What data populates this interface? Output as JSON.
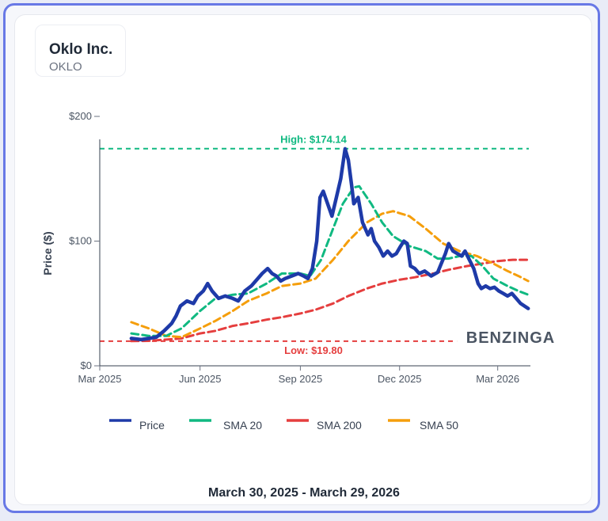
{
  "header": {
    "company": "Oklo Inc.",
    "ticker": "OKLO"
  },
  "footer": {
    "date_range": "March 30, 2025 - March 29, 2026"
  },
  "watermark": {
    "text": "BENZINGA"
  },
  "colors": {
    "price": "#1e3aa8",
    "sma20": "#10b981",
    "sma200": "#e53e3e",
    "sma50": "#f59e0b",
    "high_line": "#10b981",
    "low_line": "#e53e3e"
  },
  "chart_data": {
    "type": "line",
    "ylabel": "Price ($)",
    "ylim": [
      0,
      200
    ],
    "yticks": [
      {
        "value": 0,
        "label": "$0"
      },
      {
        "value": 100,
        "label": "$100"
      },
      {
        "value": 200,
        "label": "$200"
      }
    ],
    "xlim": [
      "2025-03-01",
      "2026-03-31"
    ],
    "xticks": [
      {
        "date": "2025-03-01",
        "label": "Mar 2025"
      },
      {
        "date": "2025-06-01",
        "label": "Jun 2025"
      },
      {
        "date": "2025-09-01",
        "label": "Sep 2025"
      },
      {
        "date": "2025-12-01",
        "label": "Dec 2025"
      },
      {
        "date": "2026-03-01",
        "label": "Mar 2026"
      }
    ],
    "high": {
      "value": 174.14,
      "label": "High: $174.14"
    },
    "low": {
      "value": 19.8,
      "label": "Low: $19.80"
    },
    "legend_position": "bottom",
    "series": [
      {
        "name": "Price",
        "key": "price",
        "points": [
          [
            "2025-03-30",
            22
          ],
          [
            "2025-04-08",
            21
          ],
          [
            "2025-04-15",
            22
          ],
          [
            "2025-04-22",
            23
          ],
          [
            "2025-04-29",
            28
          ],
          [
            "2025-05-06",
            34
          ],
          [
            "2025-05-10",
            40
          ],
          [
            "2025-05-14",
            48
          ],
          [
            "2025-05-20",
            52
          ],
          [
            "2025-05-26",
            50
          ],
          [
            "2025-05-30",
            56
          ],
          [
            "2025-06-04",
            60
          ],
          [
            "2025-06-08",
            66
          ],
          [
            "2025-06-12",
            60
          ],
          [
            "2025-06-18",
            54
          ],
          [
            "2025-06-24",
            56
          ],
          [
            "2025-07-01",
            54
          ],
          [
            "2025-07-06",
            52
          ],
          [
            "2025-07-12",
            60
          ],
          [
            "2025-07-18",
            64
          ],
          [
            "2025-07-24",
            70
          ],
          [
            "2025-07-28",
            74
          ],
          [
            "2025-08-02",
            78
          ],
          [
            "2025-08-06",
            74
          ],
          [
            "2025-08-10",
            72
          ],
          [
            "2025-08-14",
            68
          ],
          [
            "2025-08-18",
            70
          ],
          [
            "2025-08-24",
            72
          ],
          [
            "2025-08-30",
            74
          ],
          [
            "2025-09-04",
            72
          ],
          [
            "2025-09-08",
            70
          ],
          [
            "2025-09-12",
            78
          ],
          [
            "2025-09-16",
            100
          ],
          [
            "2025-09-19",
            135
          ],
          [
            "2025-09-22",
            140
          ],
          [
            "2025-09-26",
            130
          ],
          [
            "2025-09-30",
            120
          ],
          [
            "2025-10-04",
            135
          ],
          [
            "2025-10-08",
            150
          ],
          [
            "2025-10-12",
            174
          ],
          [
            "2025-10-15",
            165
          ],
          [
            "2025-10-18",
            145
          ],
          [
            "2025-10-20",
            130
          ],
          [
            "2025-10-24",
            135
          ],
          [
            "2025-10-28",
            115
          ],
          [
            "2025-11-02",
            105
          ],
          [
            "2025-11-05",
            110
          ],
          [
            "2025-11-08",
            100
          ],
          [
            "2025-11-12",
            95
          ],
          [
            "2025-11-16",
            88
          ],
          [
            "2025-11-20",
            92
          ],
          [
            "2025-11-24",
            88
          ],
          [
            "2025-11-28",
            90
          ],
          [
            "2025-12-02",
            96
          ],
          [
            "2025-12-05",
            100
          ],
          [
            "2025-12-08",
            98
          ],
          [
            "2025-12-11",
            80
          ],
          [
            "2025-12-15",
            78
          ],
          [
            "2025-12-19",
            74
          ],
          [
            "2025-12-24",
            76
          ],
          [
            "2025-12-30",
            72
          ],
          [
            "2026-01-05",
            75
          ],
          [
            "2026-01-12",
            90
          ],
          [
            "2026-01-15",
            98
          ],
          [
            "2026-01-19",
            92
          ],
          [
            "2026-01-23",
            90
          ],
          [
            "2026-01-27",
            88
          ],
          [
            "2026-01-30",
            92
          ],
          [
            "2026-02-03",
            85
          ],
          [
            "2026-02-07",
            78
          ],
          [
            "2026-02-11",
            66
          ],
          [
            "2026-02-14",
            62
          ],
          [
            "2026-02-18",
            64
          ],
          [
            "2026-02-22",
            62
          ],
          [
            "2026-02-26",
            63
          ],
          [
            "2026-03-02",
            60
          ],
          [
            "2026-03-06",
            58
          ],
          [
            "2026-03-10",
            56
          ],
          [
            "2026-03-14",
            58
          ],
          [
            "2026-03-18",
            54
          ],
          [
            "2026-03-22",
            50
          ],
          [
            "2026-03-29",
            46
          ]
        ]
      },
      {
        "name": "SMA 20",
        "key": "sma20",
        "points": [
          [
            "2025-03-30",
            26
          ],
          [
            "2025-04-15",
            24
          ],
          [
            "2025-05-01",
            24
          ],
          [
            "2025-05-15",
            30
          ],
          [
            "2025-06-01",
            44
          ],
          [
            "2025-06-15",
            54
          ],
          [
            "2025-07-01",
            57
          ],
          [
            "2025-07-15",
            58
          ],
          [
            "2025-08-01",
            66
          ],
          [
            "2025-08-15",
            74
          ],
          [
            "2025-09-01",
            74
          ],
          [
            "2025-09-10",
            72
          ],
          [
            "2025-09-20",
            85
          ],
          [
            "2025-10-01",
            110
          ],
          [
            "2025-10-10",
            130
          ],
          [
            "2025-10-20",
            143
          ],
          [
            "2025-10-25",
            144
          ],
          [
            "2025-11-05",
            130
          ],
          [
            "2025-11-15",
            115
          ],
          [
            "2025-11-25",
            104
          ],
          [
            "2025-12-10",
            96
          ],
          [
            "2025-12-25",
            92
          ],
          [
            "2026-01-05",
            86
          ],
          [
            "2026-01-15",
            86
          ],
          [
            "2026-01-25",
            88
          ],
          [
            "2026-02-05",
            88
          ],
          [
            "2026-02-15",
            80
          ],
          [
            "2026-02-25",
            70
          ],
          [
            "2026-03-10",
            64
          ],
          [
            "2026-03-20",
            60
          ],
          [
            "2026-03-29",
            57
          ]
        ]
      },
      {
        "name": "SMA 200",
        "key": "sma200",
        "points": [
          [
            "2025-03-30",
            19.8
          ],
          [
            "2025-04-15",
            20
          ],
          [
            "2025-05-01",
            21
          ],
          [
            "2025-05-15",
            22
          ],
          [
            "2025-06-01",
            26
          ],
          [
            "2025-06-15",
            28
          ],
          [
            "2025-07-01",
            32
          ],
          [
            "2025-07-15",
            34
          ],
          [
            "2025-08-01",
            37
          ],
          [
            "2025-08-15",
            39
          ],
          [
            "2025-09-01",
            42
          ],
          [
            "2025-09-15",
            45
          ],
          [
            "2025-10-01",
            50
          ],
          [
            "2025-10-15",
            56
          ],
          [
            "2025-11-01",
            62
          ],
          [
            "2025-11-15",
            66
          ],
          [
            "2025-12-01",
            69
          ],
          [
            "2025-12-15",
            71
          ],
          [
            "2026-01-01",
            74
          ],
          [
            "2026-01-15",
            77
          ],
          [
            "2026-02-01",
            80
          ],
          [
            "2026-02-15",
            82
          ],
          [
            "2026-03-01",
            84
          ],
          [
            "2026-03-15",
            85
          ],
          [
            "2026-03-29",
            85
          ]
        ]
      },
      {
        "name": "SMA 50",
        "key": "sma50",
        "points": [
          [
            "2025-03-30",
            35
          ],
          [
            "2025-04-15",
            30
          ],
          [
            "2025-05-01",
            24
          ],
          [
            "2025-05-15",
            23
          ],
          [
            "2025-06-01",
            30
          ],
          [
            "2025-06-15",
            36
          ],
          [
            "2025-07-01",
            44
          ],
          [
            "2025-07-15",
            52
          ],
          [
            "2025-08-01",
            58
          ],
          [
            "2025-08-15",
            64
          ],
          [
            "2025-09-01",
            66
          ],
          [
            "2025-09-15",
            70
          ],
          [
            "2025-10-01",
            85
          ],
          [
            "2025-10-15",
            100
          ],
          [
            "2025-11-01",
            115
          ],
          [
            "2025-11-15",
            122
          ],
          [
            "2025-11-25",
            124
          ],
          [
            "2025-12-10",
            120
          ],
          [
            "2025-12-25",
            110
          ],
          [
            "2026-01-10",
            98
          ],
          [
            "2026-01-25",
            92
          ],
          [
            "2026-02-10",
            88
          ],
          [
            "2026-02-25",
            82
          ],
          [
            "2026-03-10",
            76
          ],
          [
            "2026-03-20",
            72
          ],
          [
            "2026-03-29",
            68
          ]
        ]
      }
    ]
  }
}
